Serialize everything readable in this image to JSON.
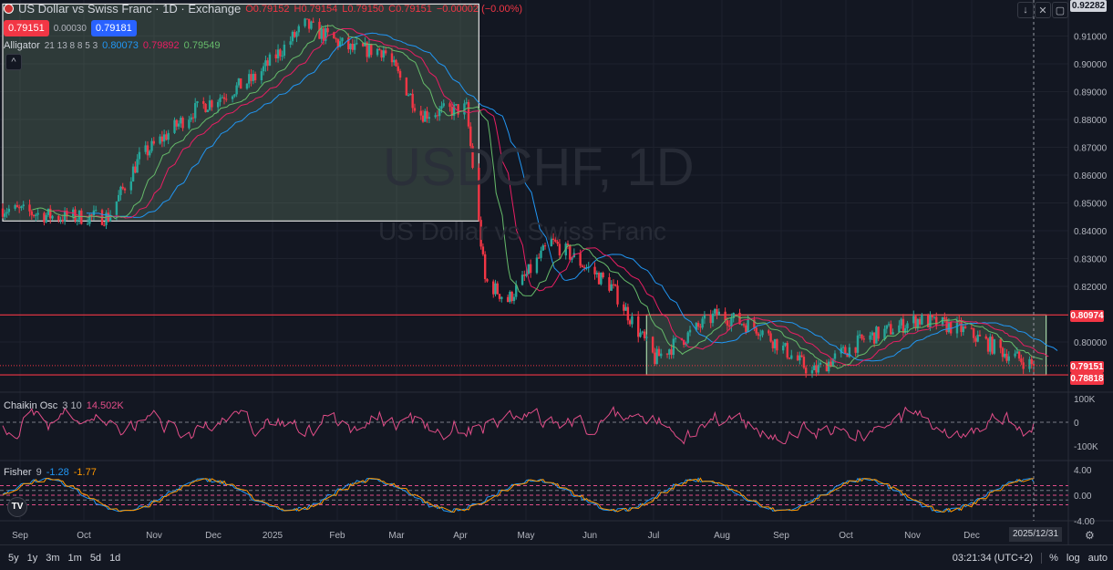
{
  "header": {
    "symbol_title": "US Dollar vs Swiss Franc · 1D · Exchange",
    "open": "O0.79152",
    "high": "H0.79154",
    "low": "L0.79150",
    "close": "C0.79151",
    "change": "−0.00002 (−0.00%)",
    "bid": "0.79151",
    "spread": "0.00030",
    "ask": "0.79181"
  },
  "indicators": {
    "alligator": {
      "name": "Alligator",
      "params": "21 13 8 8 5 3",
      "jaw": "0.80073",
      "teeth": "0.79892",
      "lips": "0.79549",
      "colors": {
        "jaw": "#2196f3",
        "teeth": "#e91e63",
        "lips": "#66bb6a"
      }
    },
    "chaikin": {
      "name": "Chaikin Osc",
      "params": "3 10",
      "value": "14.502K",
      "color": "#e24d88"
    },
    "fisher": {
      "name": "Fisher",
      "params": "9",
      "value1": "-1.28",
      "value2": "-1.77",
      "colors": [
        "#2196f3",
        "#ff9800"
      ]
    }
  },
  "watermark": {
    "line1": "USDCHF, 1D",
    "line2": "US Dollar vs Swiss Franc"
  },
  "price_axis": {
    "labels": [
      "0.91000",
      "0.90000",
      "0.89000",
      "0.88000",
      "0.87000",
      "0.86000",
      "0.85000",
      "0.84000",
      "0.83000",
      "0.82000",
      "0.80000"
    ],
    "top_label": "0.92282",
    "tags": [
      "0.80974",
      "0.79151",
      "0.78818"
    ]
  },
  "chaikin_axis": [
    "100K",
    "0",
    "-100K"
  ],
  "fisher_axis": [
    "4.00",
    "0.00",
    "-4.00"
  ],
  "time_axis": {
    "labels": [
      "Sep",
      "Oct",
      "Nov",
      "Dec",
      "2025",
      "Feb",
      "Mar",
      "Apr",
      "May",
      "Jun",
      "Jul",
      "Aug",
      "Sep",
      "Oct",
      "Nov",
      "Dec"
    ],
    "cursor_label": "2025/12/31"
  },
  "bottom_bar": {
    "ranges": [
      "5y",
      "1y",
      "3m",
      "1m",
      "5d",
      "1d"
    ],
    "clock": "03:21:34 (UTC+2)",
    "percent": "%",
    "log": "log",
    "auto": "auto"
  },
  "colors": {
    "up": "#26a69a",
    "down": "#f23645",
    "background": "#131722",
    "level": "#f23645"
  },
  "chart_data": {
    "type": "candlestick",
    "price_range": [
      0.779,
      0.9228
    ],
    "close_keypoints": [
      [
        "2024-08-20",
        0.848
      ],
      [
        "2024-09-15",
        0.845
      ],
      [
        "2024-10-10",
        0.845
      ],
      [
        "2024-10-25",
        0.866
      ],
      [
        "2024-11-20",
        0.883
      ],
      [
        "2024-12-20",
        0.895
      ],
      [
        "2025-01-13",
        0.914
      ],
      [
        "2025-02-05",
        0.905
      ],
      [
        "2025-02-20",
        0.905
      ],
      [
        "2025-03-10",
        0.882
      ],
      [
        "2025-04-01",
        0.884
      ],
      [
        "2025-04-10",
        0.822
      ],
      [
        "2025-04-21",
        0.815
      ],
      [
        "2025-05-12",
        0.836
      ],
      [
        "2025-05-20",
        0.832
      ],
      [
        "2025-06-10",
        0.82
      ],
      [
        "2025-07-01",
        0.794
      ],
      [
        "2025-07-31",
        0.81
      ],
      [
        "2025-08-20",
        0.805
      ],
      [
        "2025-09-15",
        0.789
      ],
      [
        "2025-10-10",
        0.801
      ],
      [
        "2025-11-05",
        0.808
      ],
      [
        "2025-11-25",
        0.805
      ],
      [
        "2025-12-15",
        0.797
      ],
      [
        "2025-12-31",
        0.79151
      ]
    ],
    "levels": [
      0.80974,
      0.78818
    ],
    "rectangles": [
      {
        "from": "2024-08-20",
        "to": "2025-04-07",
        "top": 0.9215,
        "bottom": 0.8435
      },
      {
        "from": "2025-06-27",
        "to": "2026-01-06",
        "top": 0.80974,
        "bottom": 0.78818
      }
    ]
  }
}
